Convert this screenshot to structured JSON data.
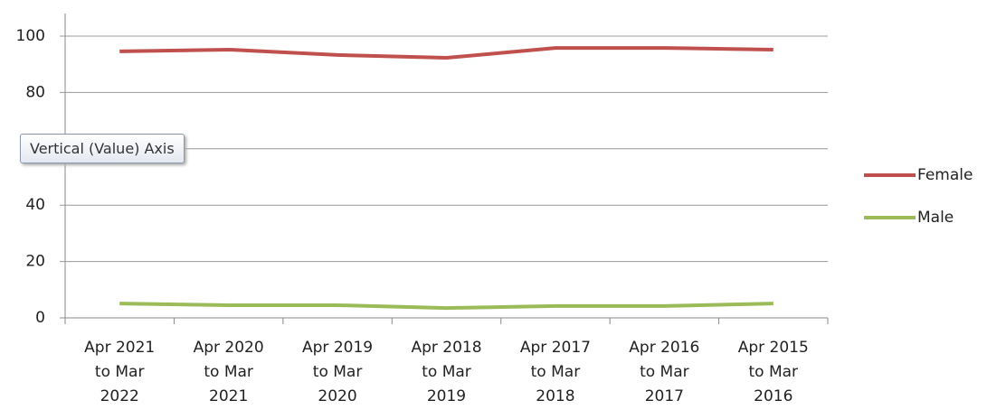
{
  "chart_data": {
    "type": "line",
    "tooltip": "Vertical (Value) Axis",
    "categories": [
      "Apr 2021 to Mar 2022",
      "Apr 2020 to Mar 2021",
      "Apr 2019 to Mar 2020",
      "Apr 2018 to Mar 2019",
      "Apr 2017 to Mar 2018",
      "Apr 2016 to Mar 2017",
      "Apr 2015 to Mar 2016"
    ],
    "series": [
      {
        "name": "Female",
        "color": "#c0504d",
        "values": [
          94.6,
          95.2,
          93.3,
          92.3,
          95.8,
          95.8,
          95.2
        ]
      },
      {
        "name": "Male",
        "color": "#9bbb59",
        "values": [
          5.1,
          4.5,
          4.5,
          3.5,
          4.2,
          4.2,
          5.1
        ]
      }
    ],
    "ylim": [
      0,
      100
    ],
    "yticks": [
      0,
      20,
      40,
      60,
      80,
      100
    ],
    "grid": true
  }
}
